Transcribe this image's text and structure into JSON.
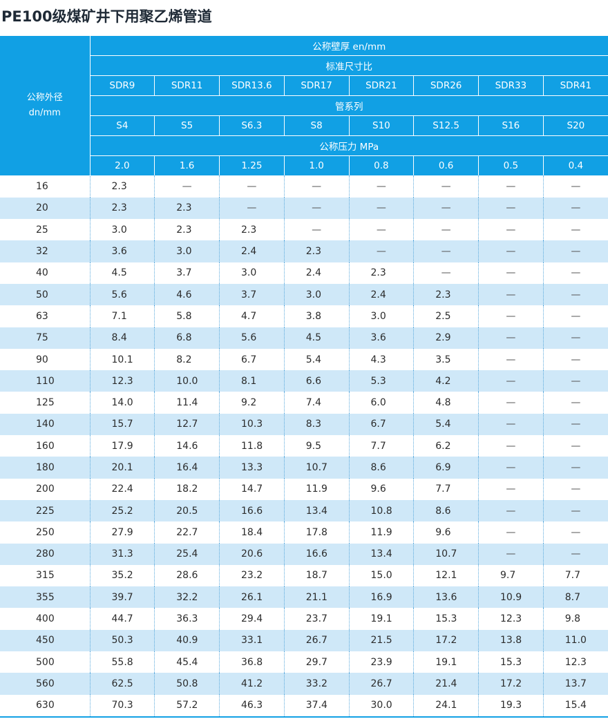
{
  "title": "PE100级煤矿井下用聚乙烯管道",
  "header": {
    "corner_line1": "公称外径",
    "corner_line2": "dn/mm",
    "wall_label": "公称壁厚 en/mm",
    "sdr_label": "标准尺寸比",
    "sdr": [
      "SDR9",
      "SDR11",
      "SDR13.6",
      "SDR17",
      "SDR21",
      "SDR26",
      "SDR33",
      "SDR41"
    ],
    "series_label": "管系列",
    "series": [
      "S4",
      "S5",
      "S6.3",
      "S8",
      "S10",
      "S12.5",
      "S16",
      "S20"
    ],
    "pressure_label": "公称压力  MPa",
    "pressure": [
      "2.0",
      "1.6",
      "1.25",
      "1.0",
      "0.8",
      "0.6",
      "0.5",
      "0.4"
    ]
  },
  "chart_data": {
    "type": "table",
    "columns": [
      "公称外径 dn/mm",
      "SDR9",
      "SDR11",
      "SDR13.6",
      "SDR17",
      "SDR21",
      "SDR26",
      "SDR33",
      "SDR41"
    ],
    "rows": [
      [
        "16",
        "2.3",
        "—",
        "—",
        "—",
        "—",
        "—",
        "—",
        "—"
      ],
      [
        "20",
        "2.3",
        "2.3",
        "—",
        "—",
        "—",
        "—",
        "—",
        "—"
      ],
      [
        "25",
        "3.0",
        "2.3",
        "2.3",
        "—",
        "—",
        "—",
        "—",
        "—"
      ],
      [
        "32",
        "3.6",
        "3.0",
        "2.4",
        "2.3",
        "—",
        "—",
        "—",
        "—"
      ],
      [
        "40",
        "4.5",
        "3.7",
        "3.0",
        "2.4",
        "2.3",
        "—",
        "—",
        "—"
      ],
      [
        "50",
        "5.6",
        "4.6",
        "3.7",
        "3.0",
        "2.4",
        "2.3",
        "—",
        "—"
      ],
      [
        "63",
        "7.1",
        "5.8",
        "4.7",
        "3.8",
        "3.0",
        "2.5",
        "—",
        "—"
      ],
      [
        "75",
        "8.4",
        "6.8",
        "5.6",
        "4.5",
        "3.6",
        "2.9",
        "—",
        "—"
      ],
      [
        "90",
        "10.1",
        "8.2",
        "6.7",
        "5.4",
        "4.3",
        "3.5",
        "—",
        "—"
      ],
      [
        "110",
        "12.3",
        "10.0",
        "8.1",
        "6.6",
        "5.3",
        "4.2",
        "—",
        "—"
      ],
      [
        "125",
        "14.0",
        "11.4",
        "9.2",
        "7.4",
        "6.0",
        "4.8",
        "—",
        "—"
      ],
      [
        "140",
        "15.7",
        "12.7",
        "10.3",
        "8.3",
        "6.7",
        "5.4",
        "—",
        "—"
      ],
      [
        "160",
        "17.9",
        "14.6",
        "11.8",
        "9.5",
        "7.7",
        "6.2",
        "—",
        "—"
      ],
      [
        "180",
        "20.1",
        "16.4",
        "13.3",
        "10.7",
        "8.6",
        "6.9",
        "—",
        "—"
      ],
      [
        "200",
        "22.4",
        "18.2",
        "14.7",
        "11.9",
        "9.6",
        "7.7",
        "—",
        "—"
      ],
      [
        "225",
        "25.2",
        "20.5",
        "16.6",
        "13.4",
        "10.8",
        "8.6",
        "—",
        "—"
      ],
      [
        "250",
        "27.9",
        "22.7",
        "18.4",
        "17.8",
        "11.9",
        "9.6",
        "—",
        "—"
      ],
      [
        "280",
        "31.3",
        "25.4",
        "20.6",
        "16.6",
        "13.4",
        "10.7",
        "—",
        "—"
      ],
      [
        "315",
        "35.2",
        "28.6",
        "23.2",
        "18.7",
        "15.0",
        "12.1",
        "9.7",
        "7.7"
      ],
      [
        "355",
        "39.7",
        "32.2",
        "26.1",
        "21.1",
        "16.9",
        "13.6",
        "10.9",
        "8.7"
      ],
      [
        "400",
        "44.7",
        "36.3",
        "29.4",
        "23.7",
        "19.1",
        "15.3",
        "12.3",
        "9.8"
      ],
      [
        "450",
        "50.3",
        "40.9",
        "33.1",
        "26.7",
        "21.5",
        "17.2",
        "13.8",
        "11.0"
      ],
      [
        "500",
        "55.8",
        "45.4",
        "36.8",
        "29.7",
        "23.9",
        "19.1",
        "15.3",
        "12.3"
      ],
      [
        "560",
        "62.5",
        "50.8",
        "41.2",
        "33.2",
        "26.7",
        "21.4",
        "17.2",
        "13.7"
      ],
      [
        "630",
        "70.3",
        "57.2",
        "46.3",
        "37.4",
        "30.0",
        "24.1",
        "19.3",
        "15.4"
      ]
    ]
  },
  "colors": {
    "header_blue": "#11a0e4",
    "stripe": "#cfe8f8",
    "divider": "#5aa9dc"
  }
}
